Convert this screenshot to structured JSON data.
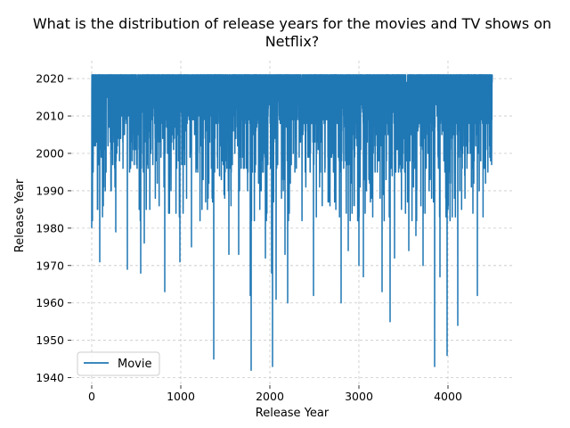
{
  "chart_data": {
    "type": "line",
    "title_lines": [
      "What is the distribution of release years for the movies and TV shows on",
      "Netflix?"
    ],
    "xlabel": "Release Year",
    "ylabel": "Release Year",
    "xlim": [
      -230,
      4720
    ],
    "ylim": [
      1938,
      2024.8
    ],
    "xticks": [
      0,
      1000,
      2000,
      3000,
      4000
    ],
    "yticks": [
      1940,
      1950,
      1960,
      1970,
      1980,
      1990,
      2000,
      2010,
      2020
    ],
    "grid": true,
    "legend_position": "lower-left",
    "series": [
      {
        "name": "Movie",
        "color": "#1f77b4",
        "n_points": 4500,
        "dips": [
          [
            0,
            1980
          ],
          [
            90,
            1971
          ],
          [
            270,
            1979
          ],
          [
            400,
            1969
          ],
          [
            550,
            1968
          ],
          [
            590,
            1976
          ],
          [
            820,
            1963
          ],
          [
            990,
            1971
          ],
          [
            1120,
            1975
          ],
          [
            1370,
            1945
          ],
          [
            1540,
            1973
          ],
          [
            1650,
            1973
          ],
          [
            1780,
            1962
          ],
          [
            1790,
            1942
          ],
          [
            1950,
            1972
          ],
          [
            2020,
            1968
          ],
          [
            2030,
            1943
          ],
          [
            2070,
            1961
          ],
          [
            2170,
            1973
          ],
          [
            2200,
            1960
          ],
          [
            2490,
            1962
          ],
          [
            2800,
            1960
          ],
          [
            2880,
            1974
          ],
          [
            3000,
            1970
          ],
          [
            3050,
            1967
          ],
          [
            3260,
            1963
          ],
          [
            3350,
            1955
          ],
          [
            3400,
            1972
          ],
          [
            3560,
            1974
          ],
          [
            3640,
            1978
          ],
          [
            3720,
            1970
          ],
          [
            3850,
            1943
          ],
          [
            3910,
            1967
          ],
          [
            3990,
            1946
          ],
          [
            4110,
            1954
          ],
          [
            4330,
            1962
          ],
          [
            4500,
            1975
          ]
        ]
      }
    ]
  }
}
